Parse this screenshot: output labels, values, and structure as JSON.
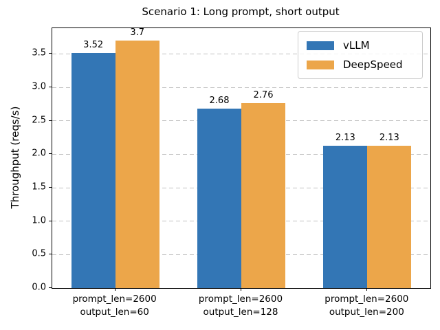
{
  "title": "Scenario 1: Long prompt, short output",
  "chart_data": {
    "type": "bar",
    "title": "Scenario 1: Long prompt, short output",
    "xlabel": "",
    "ylabel": "Throughput (reqs/s)",
    "categories": [
      [
        "prompt_len=2600",
        "output_len=60"
      ],
      [
        "prompt_len=2600",
        "output_len=128"
      ],
      [
        "prompt_len=2600",
        "output_len=200"
      ]
    ],
    "series": [
      {
        "name": "vLLM",
        "color": "#3376B5",
        "values": [
          3.52,
          2.68,
          2.13
        ]
      },
      {
        "name": "DeepSpeed",
        "color": "#ECA64A",
        "values": [
          3.7,
          2.76,
          2.13
        ]
      }
    ],
    "bar_value_labels": {
      "vLLM": [
        "3.52",
        "2.68",
        "2.13"
      ],
      "DeepSpeed": [
        "3.7",
        "2.76",
        "2.13"
      ]
    },
    "yticks": [
      0.0,
      0.5,
      1.0,
      1.5,
      2.0,
      2.5,
      3.0,
      3.5
    ],
    "ylim": [
      0,
      3.885
    ],
    "grid": {
      "axis": "y",
      "style": "dashed",
      "color": "#bfbfbf"
    },
    "legend": {
      "position": "upper right"
    }
  }
}
